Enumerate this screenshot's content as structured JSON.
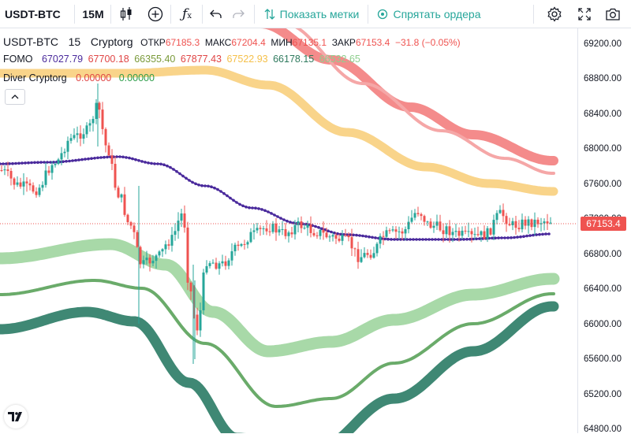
{
  "toolbar": {
    "symbol": "USDT-BTC",
    "interval": "15M",
    "show_marks_label": "Показать метки",
    "hide_orders_label": "Спрятать ордера"
  },
  "legend": {
    "symbol": "USDT-BTC",
    "interval": "15",
    "source": "Cryptorg",
    "open_label": "ОТКР",
    "open_value": "67185.3",
    "high_label": "МАКС",
    "high_value": "67204.4",
    "low_label": "МИН",
    "low_value": "67135.1",
    "close_label": "ЗАКР",
    "close_value": "67153.4",
    "change": "−31.8 (−0.05%)"
  },
  "fomo": {
    "name": "FOMO",
    "values": [
      {
        "text": "67027.79",
        "color": "#4a2a9c"
      },
      {
        "text": "67700.18",
        "color": "#e04545"
      },
      {
        "text": "66355.40",
        "color": "#7a9a3a"
      },
      {
        "text": "67877.43",
        "color": "#e04545"
      },
      {
        "text": "67522.93",
        "color": "#f5c04a"
      },
      {
        "text": "66178.15",
        "color": "#2f7a5e"
      },
      {
        "text": "66532.65",
        "color": "#8fcf8f"
      }
    ]
  },
  "diver": {
    "name": "Diver Cryptorg",
    "value_a": "0.00000",
    "value_b": "0.00000",
    "color_a": "#e04545",
    "color_b": "#2e9e4a"
  },
  "price_axis": {
    "ticks": [
      "69200.00",
      "68800.00",
      "68400.00",
      "68000.00",
      "67600.00",
      "67200.00",
      "66800.00",
      "66400.00",
      "66000.00",
      "65600.00",
      "65200.00",
      "64800.00"
    ],
    "last_price": "67153.4"
  },
  "colors": {
    "up": "#26a69a",
    "down": "#ef5350",
    "purple": "#4a2a9c",
    "band_red": "#f48b8b",
    "band_pink": "#f5a7a7",
    "band_yellow": "#f9d48a",
    "band_lightgreen": "#a8d9a8",
    "band_green": "#6aab6a",
    "band_darkgreen": "#3f8874"
  }
}
